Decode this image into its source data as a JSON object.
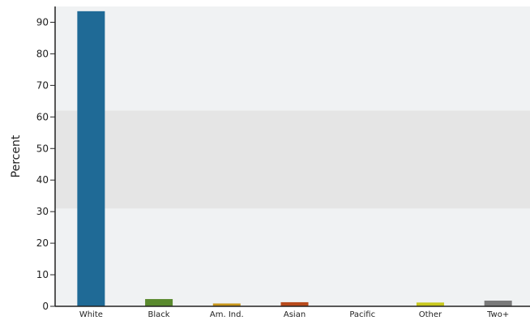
{
  "chart_data": {
    "type": "bar",
    "categories": [
      "White",
      "Black",
      "Am. Ind.",
      "Asian",
      "Pacific",
      "Other",
      "Two+"
    ],
    "values": [
      93.5,
      2.3,
      0.9,
      1.3,
      0.1,
      1.2,
      1.8
    ],
    "colors": [
      "#1f6a96",
      "#5a8a2e",
      "#c8961a",
      "#b84a1c",
      "#8a8a8a",
      "#c8c81e",
      "#7a7a7a"
    ],
    "title": "",
    "xlabel": "",
    "ylabel": "Percent",
    "ylim": [
      0,
      95
    ],
    "yticks": [
      0,
      10,
      20,
      30,
      40,
      50,
      60,
      70,
      80,
      90
    ],
    "band_range": [
      31,
      62
    ],
    "colors_theme": {
      "plot_bg": "#f0f2f3",
      "band": "#e5e5e5",
      "axis": "#222222"
    }
  }
}
